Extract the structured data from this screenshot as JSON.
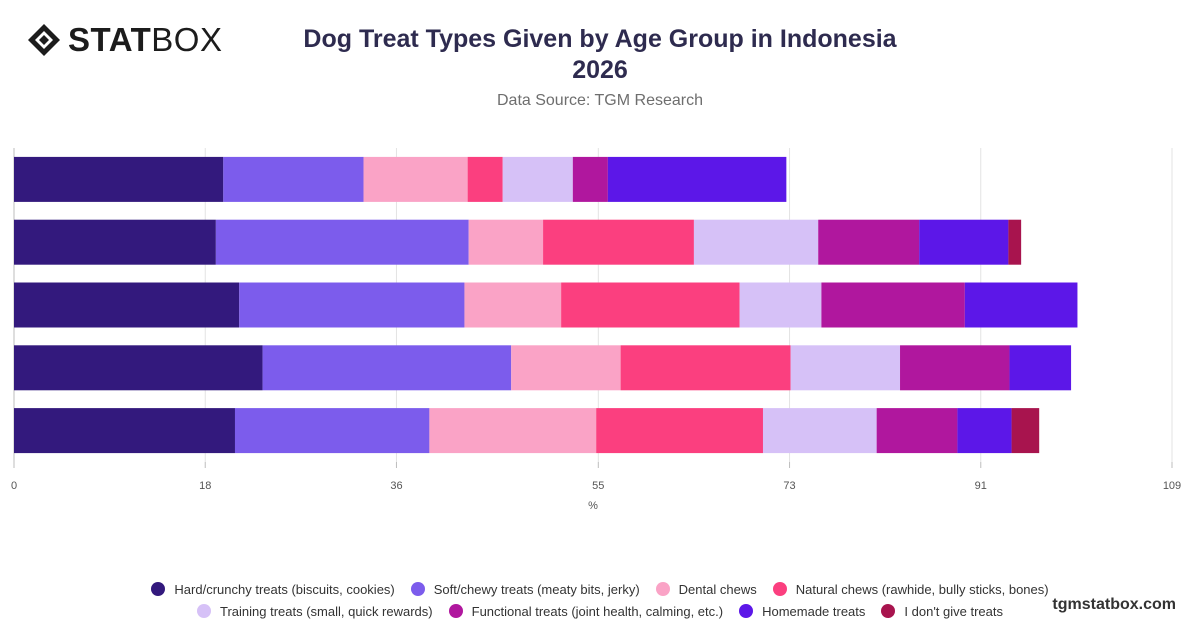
{
  "brand": {
    "logo_bold": "STAT",
    "logo_light": "BOX",
    "watermark": "tgmstatbox.com"
  },
  "header": {
    "title_line1": "Dog Treat Types Given by Age Group in Indonesia",
    "title_line2": "2026",
    "subtitle": "Data Source: TGM Research"
  },
  "chart_data": {
    "type": "bar",
    "orientation": "horizontal",
    "stacked": true,
    "title": "Dog Treat Types Given by Age Group in Indonesia 2026",
    "subtitle": "Data Source: TGM Research",
    "xlabel": "%",
    "xlim": [
      0,
      109
    ],
    "xticks": [
      0,
      18,
      36,
      55,
      73,
      91,
      109
    ],
    "grid": true,
    "legend": "bottom",
    "categories": [
      "",
      "",
      "",
      "",
      ""
    ],
    "series": [
      {
        "name": "Hard/crunchy treats (biscuits, cookies)",
        "color": "#33197d",
        "values": [
          19.7,
          19.0,
          21.2,
          23.4,
          20.8
        ]
      },
      {
        "name": "Soft/chewy treats (meaty bits, jerky)",
        "color": "#7c5cec",
        "values": [
          13.2,
          23.8,
          21.2,
          23.4,
          18.3
        ]
      },
      {
        "name": "Dental chews",
        "color": "#faa3c6",
        "values": [
          9.8,
          7.0,
          9.1,
          10.3,
          15.7
        ]
      },
      {
        "name": "Natural chews (rawhide, bully sticks, bones)",
        "color": "#fb3f7f",
        "values": [
          3.3,
          14.2,
          16.8,
          16.0,
          15.7
        ]
      },
      {
        "name": "Training treats (small, quick rewards)",
        "color": "#d6c1f7",
        "values": [
          6.6,
          11.7,
          7.7,
          10.3,
          10.7
        ]
      },
      {
        "name": "Functional treats (joint health, calming, etc.)",
        "color": "#b0179e",
        "values": [
          3.3,
          9.5,
          13.5,
          10.3,
          7.6
        ]
      },
      {
        "name": "Homemade treats",
        "color": "#5c17e8",
        "values": [
          16.8,
          8.4,
          10.6,
          5.8,
          5.1
        ]
      },
      {
        "name": "I don't give treats",
        "color": "#a8144e",
        "values": [
          0,
          1.2,
          0,
          0,
          2.6
        ]
      }
    ]
  }
}
